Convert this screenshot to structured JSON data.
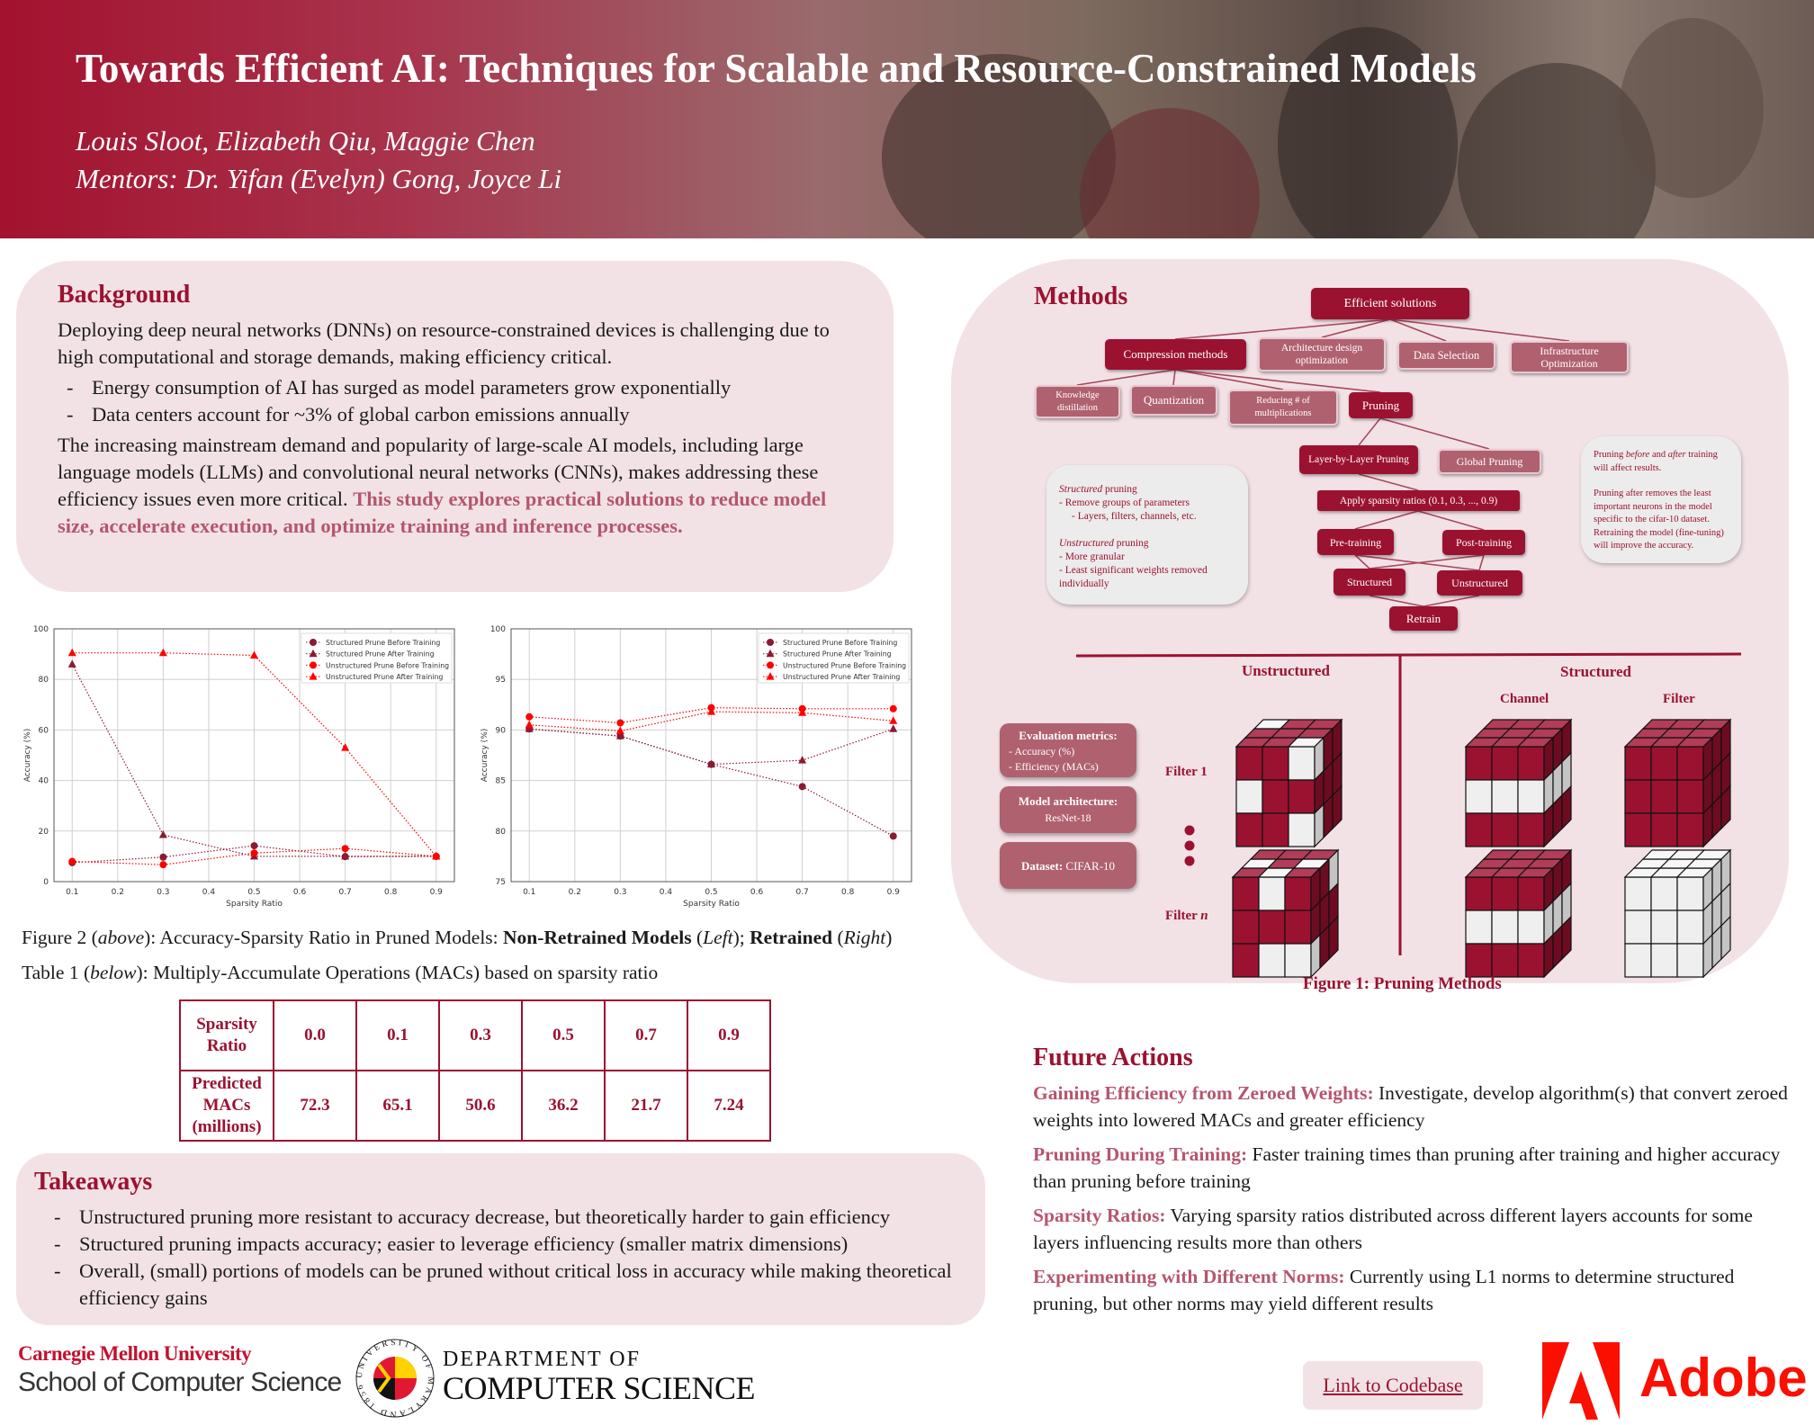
{
  "header": {
    "title": "Towards Efficient AI: Techniques for Scalable and Resource-Constrained Models",
    "authors": "Louis Sloot, Elizabeth Qiu, Maggie Chen",
    "mentors": "Mentors: Dr. Yifan (Evelyn) Gong, Joyce Li"
  },
  "background": {
    "heading": "Background",
    "intro": "Deploying deep neural networks (DNNs) on resource-constrained devices is challenging due to high computational and storage demands, making efficiency critical.",
    "bullets": [
      "Energy consumption of AI has surged as model parameters grow exponentially",
      "Data centers account for ~3% of global carbon emissions annually"
    ],
    "para": "The increasing mainstream demand and popularity of large-scale AI models, including large language models (LLMs) and convolutional neural networks (CNNs), makes addressing these efficiency issues even more critical.",
    "highlight": "This study explores practical solutions to reduce model size, accelerate execution, and optimize training and inference processes."
  },
  "chart_data": [
    {
      "type": "line",
      "xlabel": "Sparsity Ratio",
      "ylabel": "Accuracy (%)",
      "x": [
        0.1,
        0.3,
        0.5,
        0.7,
        0.9
      ],
      "xticks": [
        0.1,
        0.2,
        0.3,
        0.4,
        0.5,
        0.6,
        0.7,
        0.8,
        0.9
      ],
      "yticks": [
        0,
        20,
        40,
        60,
        80,
        100
      ],
      "xlim": [
        0.06,
        0.94
      ],
      "ylim": [
        0,
        100
      ],
      "grid": true,
      "legend": "top-right",
      "series": [
        {
          "name": "Structured Prune Before Training",
          "marker": "circle",
          "color": "#8b1a35",
          "values": [
            7.5,
            9.7,
            14.2,
            9.9,
            10.0
          ]
        },
        {
          "name": "Structured Prune After Training",
          "marker": "triangle",
          "color": "#8b1a35",
          "values": [
            86.0,
            18.5,
            10.0,
            10.0,
            10.0
          ]
        },
        {
          "name": "Unstructured Prune Before Training",
          "marker": "circle",
          "color": "#ff0000",
          "values": [
            8.0,
            6.7,
            11.3,
            13.1,
            10.0
          ]
        },
        {
          "name": "Unstructured Prune After Training",
          "marker": "triangle",
          "color": "#ff0000",
          "values": [
            90.5,
            90.5,
            89.5,
            53.0,
            10.0
          ]
        }
      ]
    },
    {
      "type": "line",
      "xlabel": "Sparsity Ratio",
      "ylabel": "Accuracy (%)",
      "x": [
        0.1,
        0.3,
        0.5,
        0.7,
        0.9
      ],
      "xticks": [
        0.1,
        0.2,
        0.3,
        0.4,
        0.5,
        0.6,
        0.7,
        0.8,
        0.9
      ],
      "yticks": [
        75,
        80,
        85,
        90,
        95,
        100
      ],
      "xlim": [
        0.06,
        0.94
      ],
      "ylim": [
        75,
        100
      ],
      "grid": true,
      "legend": "top-right",
      "series": [
        {
          "name": "Structured Prune Before Training",
          "marker": "circle",
          "color": "#8b1a35",
          "values": [
            90.1,
            89.4,
            86.6,
            84.4,
            79.5
          ]
        },
        {
          "name": "Structured Prune After Training",
          "marker": "triangle",
          "color": "#8b1a35",
          "values": [
            90.1,
            89.4,
            86.6,
            87.0,
            90.1
          ]
        },
        {
          "name": "Unstructured Prune Before Training",
          "marker": "circle",
          "color": "#ff0000",
          "values": [
            91.3,
            90.7,
            92.2,
            92.1,
            92.1
          ]
        },
        {
          "name": "Unstructured Prune After Training",
          "marker": "triangle",
          "color": "#ff0000",
          "values": [
            90.5,
            89.9,
            91.8,
            91.7,
            90.9
          ]
        }
      ]
    }
  ],
  "figure2": {
    "prefix": "Figure 2 (",
    "above": "above",
    "mid": "): Accuracy-Sparsity Ratio in Pruned Models: ",
    "nonretrained": "Non-Retrained Models",
    "left_open": " (",
    "left": "Left",
    "close": "); ",
    "retrained": "Retrained",
    "right_open": " (",
    "right": "Right",
    "end": ")"
  },
  "table1": {
    "prefix": "Table 1 (",
    "below": "below",
    "rest": "): Multiply-Accumulate Operations (MACs) based on sparsity ratio",
    "row1_header": "Sparsity Ratio",
    "row2_header": "Predicted MACs (millions)",
    "sparsity": [
      "0.0",
      "0.1",
      "0.3",
      "0.5",
      "0.7",
      "0.9"
    ],
    "macs": [
      "72.3",
      "65.1",
      "50.6",
      "36.2",
      "21.7",
      "7.24"
    ]
  },
  "takeaways": {
    "heading": "Takeaways",
    "items": [
      "Unstructured pruning more resistant to accuracy decrease, but theoretically harder to gain efficiency",
      "Structured pruning impacts accuracy; easier to leverage efficiency (smaller matrix dimensions)",
      "Overall, (small) portions of models can be pruned without critical loss in accuracy while making theoretical efficiency gains"
    ]
  },
  "methods": {
    "heading": "Methods",
    "nodes": {
      "efficient": "Efficient solutions",
      "compression": "Compression methods",
      "architecture": "Architecture design optimization",
      "data_selection": "Data Selection",
      "infrastructure": "Infrastructure Optimization",
      "knowledge": "Knowledge distillation",
      "quantization": "Quantization",
      "reducing": "Reducing # of multiplications",
      "pruning": "Pruning",
      "layer": "Layer-by-Layer Pruning",
      "global": "Global Pruning",
      "apply": "Apply sparsity ratios (0.1, 0.3, ..., 0.9)",
      "pre": "Pre-training",
      "post": "Post-training",
      "structured": "Structured",
      "unstructured": "Unstructured",
      "retrain": "Retrain"
    },
    "note_left": {
      "s_em": "Structured",
      "s_rest": " pruning",
      "s1": "- Remove groups of parameters",
      "s2": "- Layers, filters, channels, etc.",
      "u_em": "Unstructured",
      "u_rest": " pruning",
      "u1": "- More granular",
      "u2": "- Least significant weights removed individually"
    },
    "note_right": {
      "a": "Pruning ",
      "b": "before",
      "c": " and ",
      "d": "after",
      "e": " training will affect results.",
      "p2": "Pruning after removes the least important neurons in the model specific to the cifar-10 dataset. Retraining the model (fine-tuning) will improve the accuracy."
    },
    "eval": {
      "title": "Evaluation metrics:",
      "m1": "- Accuracy (%)",
      "m2": "- Efficiency (MACs)"
    },
    "model": {
      "title": "Model architecture:",
      "value": "ResNet-18"
    },
    "dataset": {
      "title": "Dataset:",
      "value": "CIFAR-10"
    },
    "labels": {
      "unstructured": "Unstructured",
      "structured": "Structured",
      "channel": "Channel",
      "filter": "Filter",
      "filter1": "Filter 1",
      "filtern_prefix": "Filter ",
      "filtern_n": "n"
    },
    "figure_caption": "Figure 1: Pruning Methods",
    "colors": {
      "kept": "#9b1230",
      "pruned": "#eeeeee"
    },
    "cubes": {
      "unstructured_filter1": {
        "front": [
          [
            1,
            1,
            0
          ],
          [
            0,
            1,
            1
          ],
          [
            1,
            1,
            0
          ]
        ],
        "top": [
          [
            0,
            1,
            1
          ],
          [
            1,
            1,
            1
          ],
          [
            1,
            1,
            0
          ]
        ],
        "side": [
          [
            0,
            1,
            1
          ],
          [
            1,
            1,
            1
          ],
          [
            0,
            1,
            1
          ]
        ]
      },
      "unstructured_filtern": {
        "front": [
          [
            1,
            0,
            1
          ],
          [
            1,
            1,
            1
          ],
          [
            1,
            0,
            0
          ]
        ],
        "top": [
          [
            1,
            1,
            1
          ],
          [
            0,
            1,
            0
          ],
          [
            1,
            0,
            1
          ]
        ],
        "side": [
          [
            1,
            1,
            0
          ],
          [
            1,
            1,
            1
          ],
          [
            0,
            1,
            1
          ]
        ]
      },
      "channel_1": {
        "front": [
          [
            1,
            1,
            1
          ],
          [
            0,
            0,
            0
          ],
          [
            1,
            1,
            1
          ]
        ],
        "top": [
          [
            1,
            1,
            1
          ],
          [
            1,
            1,
            1
          ],
          [
            1,
            1,
            1
          ]
        ],
        "side": [
          [
            1,
            1,
            1
          ],
          [
            0,
            0,
            0
          ],
          [
            1,
            1,
            1
          ]
        ]
      },
      "filter_1": {
        "front": [
          [
            1,
            1,
            1
          ],
          [
            1,
            1,
            1
          ],
          [
            1,
            1,
            1
          ]
        ],
        "top": [
          [
            1,
            1,
            1
          ],
          [
            1,
            1,
            1
          ],
          [
            1,
            1,
            1
          ]
        ],
        "side": [
          [
            1,
            1,
            1
          ],
          [
            1,
            1,
            1
          ],
          [
            1,
            1,
            1
          ]
        ]
      },
      "channel_n": {
        "front": [
          [
            1,
            1,
            1
          ],
          [
            0,
            0,
            0
          ],
          [
            1,
            1,
            1
          ]
        ],
        "top": [
          [
            1,
            1,
            1
          ],
          [
            1,
            1,
            1
          ],
          [
            1,
            1,
            1
          ]
        ],
        "side": [
          [
            1,
            1,
            1
          ],
          [
            0,
            0,
            0
          ],
          [
            1,
            1,
            1
          ]
        ]
      },
      "filter_n": {
        "front": [
          [
            0,
            0,
            0
          ],
          [
            0,
            0,
            0
          ],
          [
            0,
            0,
            0
          ]
        ],
        "top": [
          [
            0,
            0,
            0
          ],
          [
            0,
            0,
            0
          ],
          [
            0,
            0,
            0
          ]
        ],
        "side": [
          [
            0,
            0,
            0
          ],
          [
            0,
            0,
            0
          ],
          [
            0,
            0,
            0
          ]
        ]
      }
    }
  },
  "future": {
    "heading": "Future Actions",
    "items": [
      {
        "label": "Gaining Efficiency from Zeroed Weights:",
        "text": " Investigate, develop algorithm(s) that convert zeroed weights into lowered MACs and greater efficiency"
      },
      {
        "label": "Pruning During Training:",
        "text": " Faster training times than pruning after training and higher accuracy than pruning before training"
      },
      {
        "label": "Sparsity Ratios:",
        "text": " Varying sparsity ratios distributed across different layers accounts for some layers influencing results more than others"
      },
      {
        "label": "Experimenting with Different Norms:",
        "text": " Currently using L1 norms to determine structured pruning, but other norms may yield different results"
      }
    ]
  },
  "footer": {
    "cmu_name": "Carnegie Mellon University",
    "cmu_school": "School of Computer Science",
    "umd_dept1": "DEPARTMENT OF",
    "umd_dept2": "COMPUTER SCIENCE",
    "umd_seal_text": "UNIVERSITY OF MARYLAND 1856",
    "codebase_link": "Link to Codebase",
    "adobe": "Adobe",
    "adobe_color": "#fa0f00",
    "accent": "#9b1230"
  }
}
